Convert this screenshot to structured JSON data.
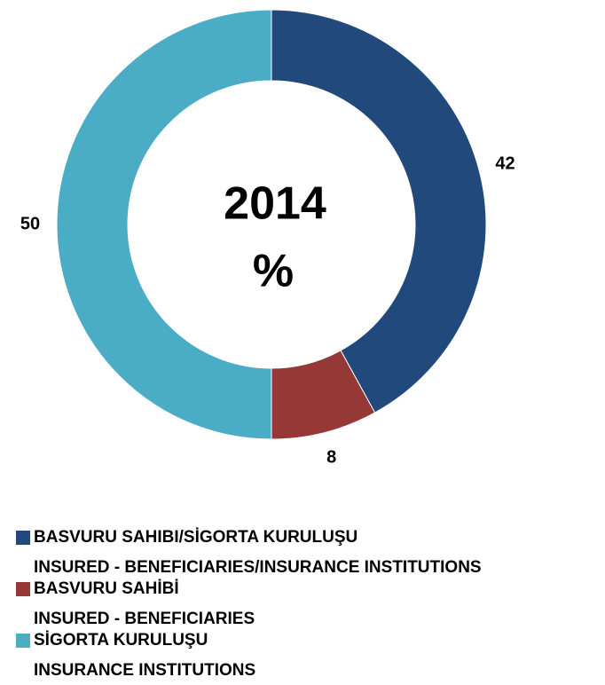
{
  "chart_data": {
    "type": "pie",
    "donut": true,
    "title": "2014",
    "subtitle": "%",
    "categories": [
      [
        "BASVURU SAHIBI/SİGORTA KURULUŞU",
        "INSURED - BENEFICIARIES/INSURANCE INSTITUTIONS"
      ],
      [
        "BASVURU SAHİBİ",
        "INSURED - BENEFICIARIES"
      ],
      [
        "SİGORTA KURULUŞU",
        "INSURANCE INSTITUTIONS"
      ]
    ],
    "values": [
      42,
      8,
      50
    ],
    "colors": [
      "#21497c",
      "#953836",
      "#4bacc6"
    ],
    "legend": "bottom"
  }
}
